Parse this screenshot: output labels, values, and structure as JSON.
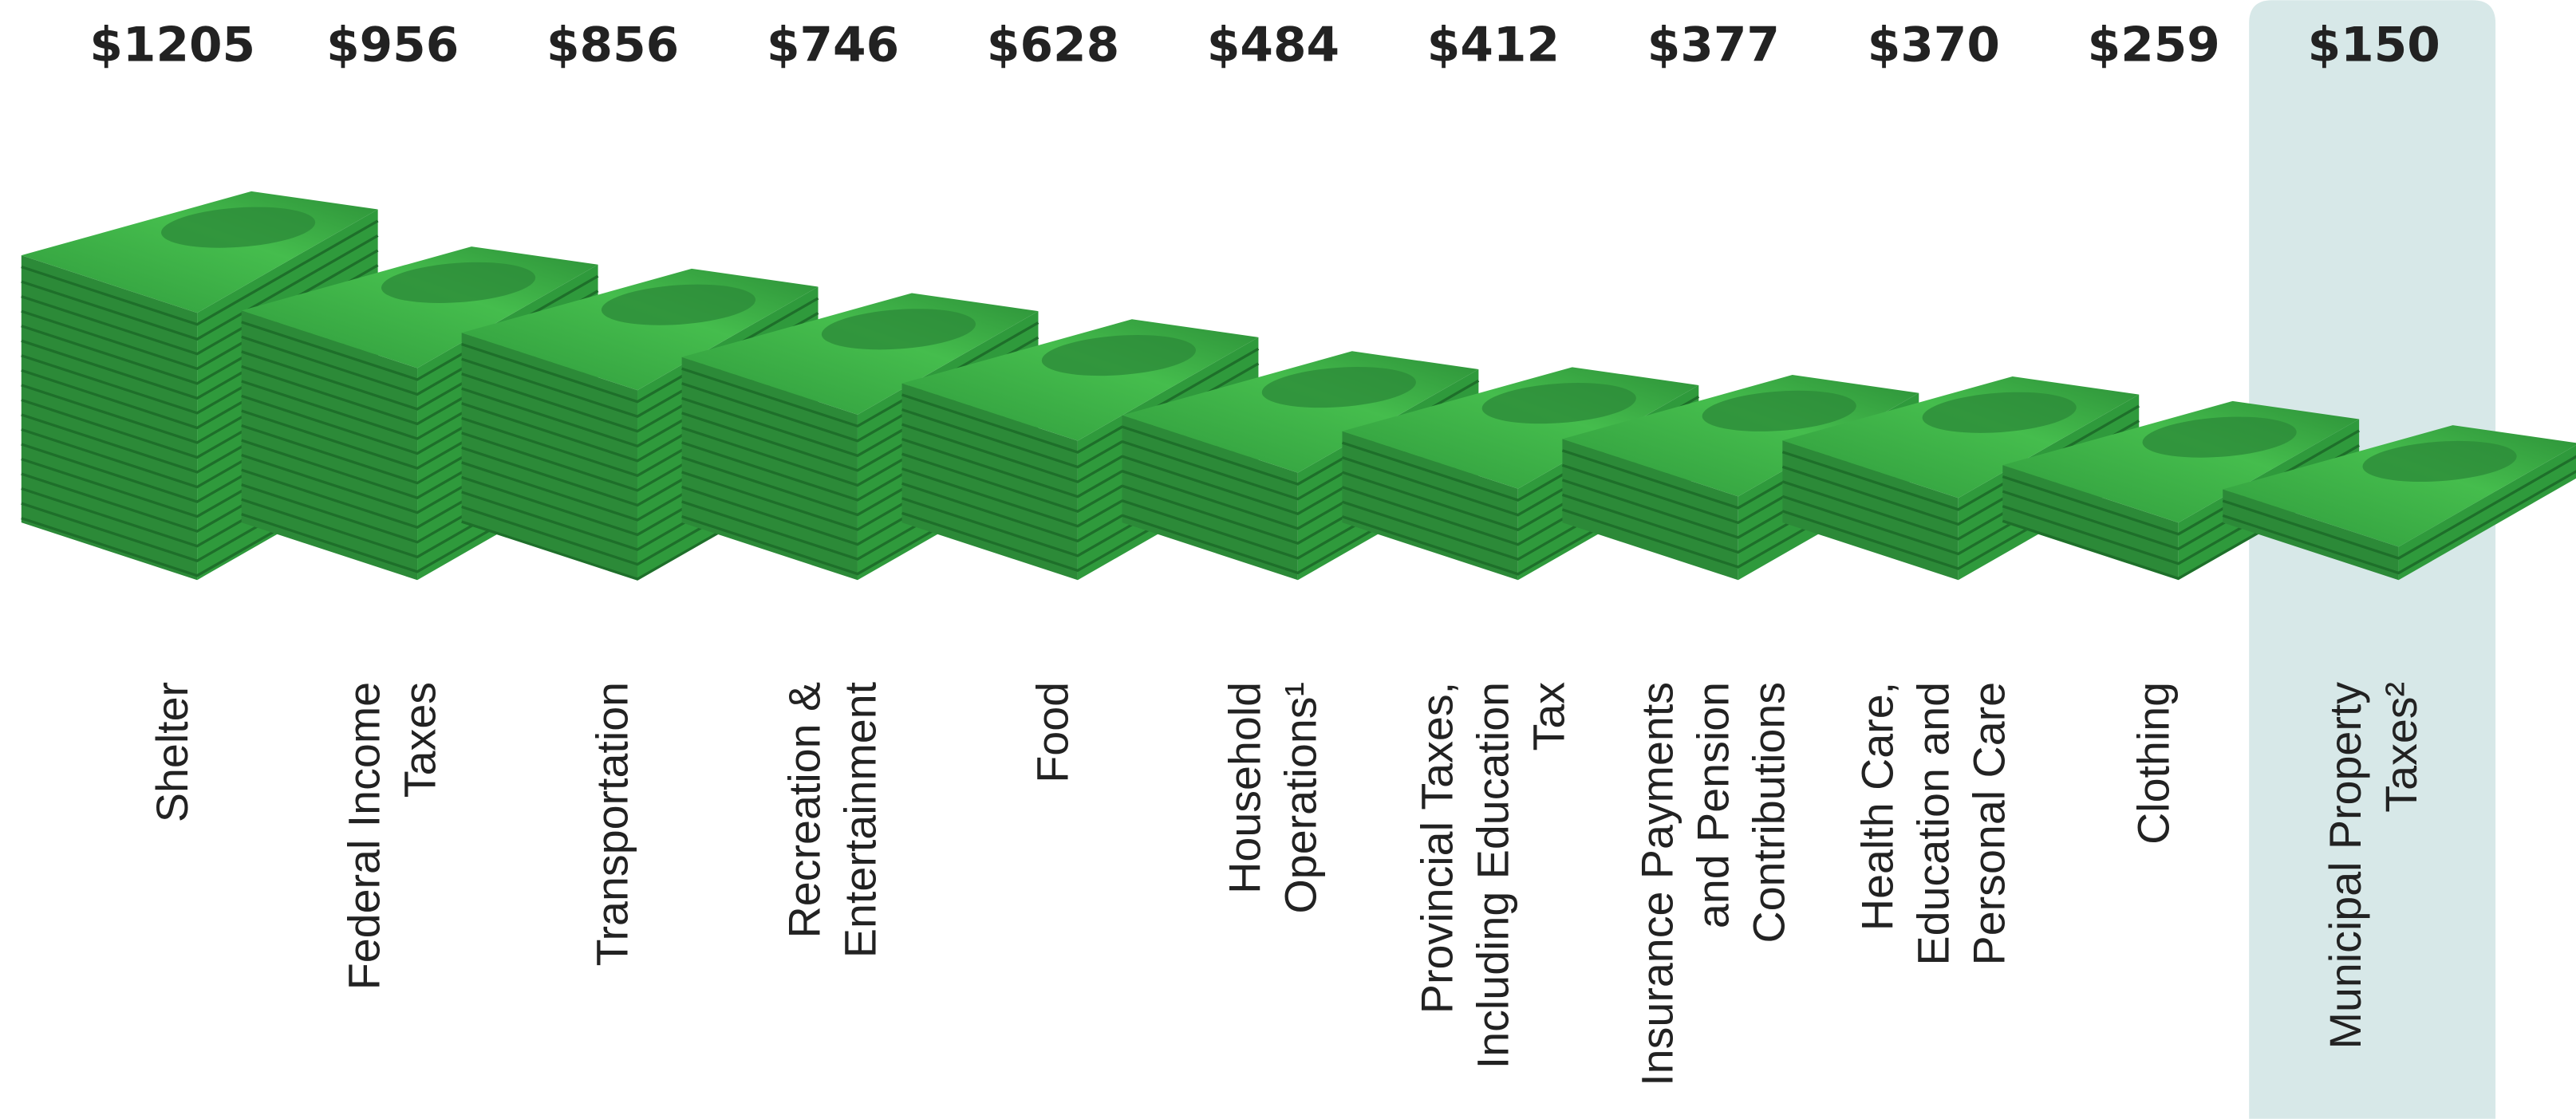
{
  "chart_data": {
    "type": "money-stack",
    "categories": [
      "Shelter",
      "Federal Income Taxes",
      "Transportation",
      "Recreation & Entertainment",
      "Food",
      "Household Operations¹",
      "Provincial Taxes, Including Education Tax",
      "Insurance Payments and Pension Contributions",
      "Health Care, Education and Personal Care",
      "Clothing",
      "Municipal Property Taxes²"
    ],
    "values": [
      1205,
      956,
      856,
      746,
      628,
      484,
      412,
      377,
      370,
      259,
      150
    ],
    "value_labels": [
      "$1205",
      "$956",
      "$856",
      "$746",
      "$628",
      "$484",
      "$412",
      "$377",
      "$370",
      "$259",
      "$150"
    ],
    "color": "#3cb44a",
    "highlight": {
      "index": 10,
      "color": "#d7e8e8"
    }
  }
}
